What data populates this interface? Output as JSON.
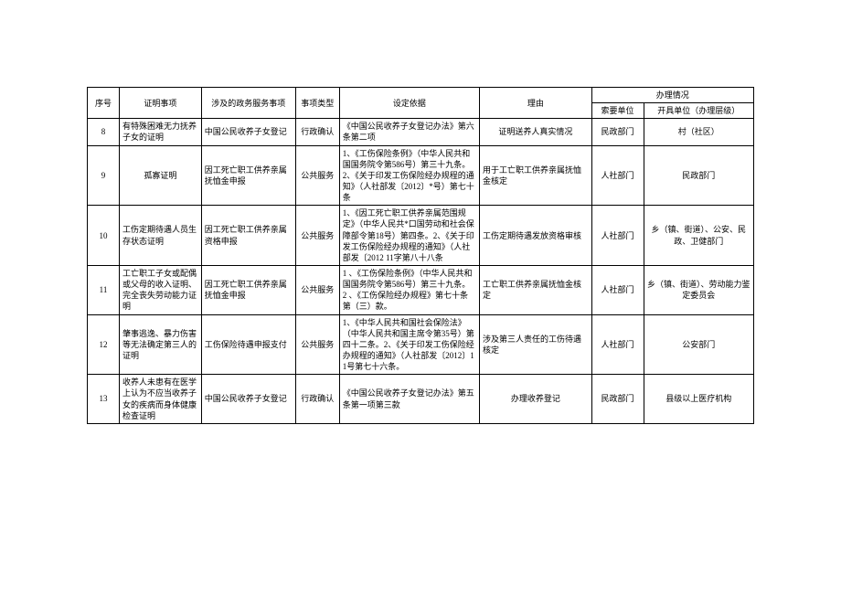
{
  "table": {
    "headers": {
      "seq": "序号",
      "item": "证明事项",
      "service": "涉及的政务服务事项",
      "type": "事项类型",
      "basis": "设定依据",
      "reason": "理由",
      "handling": "办理情况",
      "requnit": "索要单位",
      "issuer": "开具单位（办理层级）"
    },
    "rows": [
      {
        "seq": "8",
        "item": "有特殊困难无力抚养子女的证明",
        "service": "中国公民收养子女登记",
        "type": "行政确认",
        "basis": "《中国公民收养子女登记办法》第六条第二项",
        "reason": "证明送养人真实情况",
        "requnit": "民政部门",
        "issuer": "村（社区）"
      },
      {
        "seq": "9",
        "item": "孤寡证明",
        "service": "因工死亡职工供养亲属抚恤金申报",
        "type": "公共服务",
        "basis": "1、《工伤保险条例》（中华人民共和国国务院令第586号）第三十九条。2、《关于印发工伤保险经办规程的通知》（人社部发〔2012〕*号）第七十条",
        "reason": "用于工亡职工供养亲属抚恤金核定",
        "requnit": "人社部门",
        "issuer": "民政部门"
      },
      {
        "seq": "10",
        "item": "工伤定期待遇人员生存状态证明",
        "service": "因工死亡职工供养亲属资格申报",
        "type": "公共服务",
        "basis": "1、《因工死亡职工供养亲属范围规定》（中华人民共*口国劳动和社会保障部令第18号）第四条。2、《关于印发工伤保险经办规程的通知》（人社部发〔2012 11字第八十八条",
        "reason": "工伤定期待遇发放资格审核",
        "requnit": "人社部门",
        "issuer": "乡（镇、街道）、公安、民政、卫健部门"
      },
      {
        "seq": "11",
        "item": "工亡职工子女或配偶或父母的收入证明、完全丧失劳动能力证明",
        "service": "因工死亡职工供养亲属抚恤金申报",
        "type": "公共服务",
        "basis": "1   、《工伤保险条例》（中华人民共和国国务院令第586号）第三十九条。\n2 、《工伤保险经办规程》第七十条第（三）款。",
        "reason": "工亡职工供养亲属抚恤金核定",
        "requnit": "人社部门",
        "issuer": "乡（镇、街道）、劳动能力鉴定委员会"
      },
      {
        "seq": "12",
        "item": "肇事逃逸、暴力伤害等无法确定第三人的证明",
        "service": "工伤保险待遇申报支付",
        "type": "公共服务",
        "basis": "1、《中华人民共和国社会保险法》（中华人民共和国主席令第35号）第四十二条。2、《关于印发工伤保险经办规程的通知》（人社部发〔2012〕11号第七十六条。",
        "reason": "涉及第三人责任的工伤待遇核定",
        "requnit": "人社部门",
        "issuer": "公安部门"
      },
      {
        "seq": "13",
        "item": "收养人未患有在医学上认为不应当收养子女的疾病而身体健康检查证明",
        "service": "中国公民收养子女登记",
        "type": "行政确认",
        "basis": "《中国公民收养子女登记办法》第五条第一项第三款",
        "reason": "办理收养登记",
        "requnit": "民政部门",
        "issuer": "县级以上医疗机构"
      }
    ]
  }
}
